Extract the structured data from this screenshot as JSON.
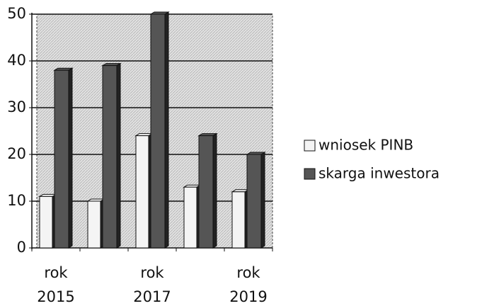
{
  "chart_data": {
    "type": "bar",
    "categories": [
      "rok 2015",
      null,
      "rok 2017",
      null,
      "rok 2019"
    ],
    "series": [
      {
        "name": "wniosek PINB",
        "color": "#f4f4f4",
        "values": [
          11,
          10,
          24,
          13,
          12
        ]
      },
      {
        "name": "skarga inwestora",
        "color": "#555555",
        "values": [
          38,
          39,
          50,
          24,
          20
        ]
      }
    ],
    "ylim": [
      0,
      50
    ],
    "yticks": [
      0,
      10,
      20,
      30,
      40,
      50
    ],
    "grid": true,
    "legend": "right"
  }
}
